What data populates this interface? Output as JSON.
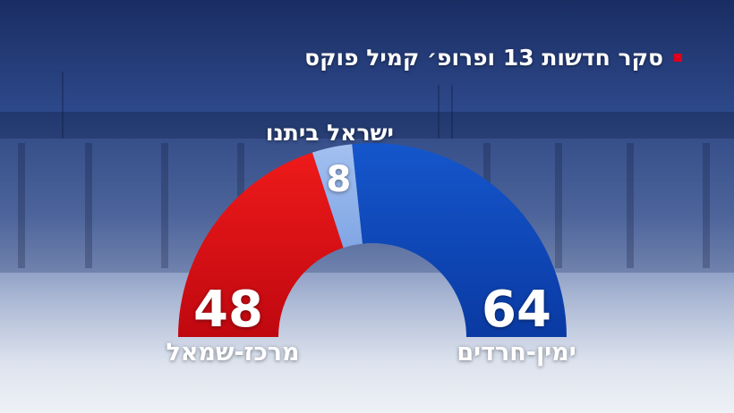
{
  "title": "סקר חדשות 13 ופרופ׳ קמיל פוקס",
  "chart_data": {
    "type": "pie",
    "shape": "half-donut",
    "total": 120,
    "slices": [
      {
        "label": "מרכז-שמאל",
        "value": 48,
        "color": "#d20a12"
      },
      {
        "label": "ישראל ביתנו",
        "value": 8,
        "color": "#8fb2ea"
      },
      {
        "label": "ימין-חרדים",
        "value": 64,
        "color": "#0c44b4"
      }
    ]
  }
}
